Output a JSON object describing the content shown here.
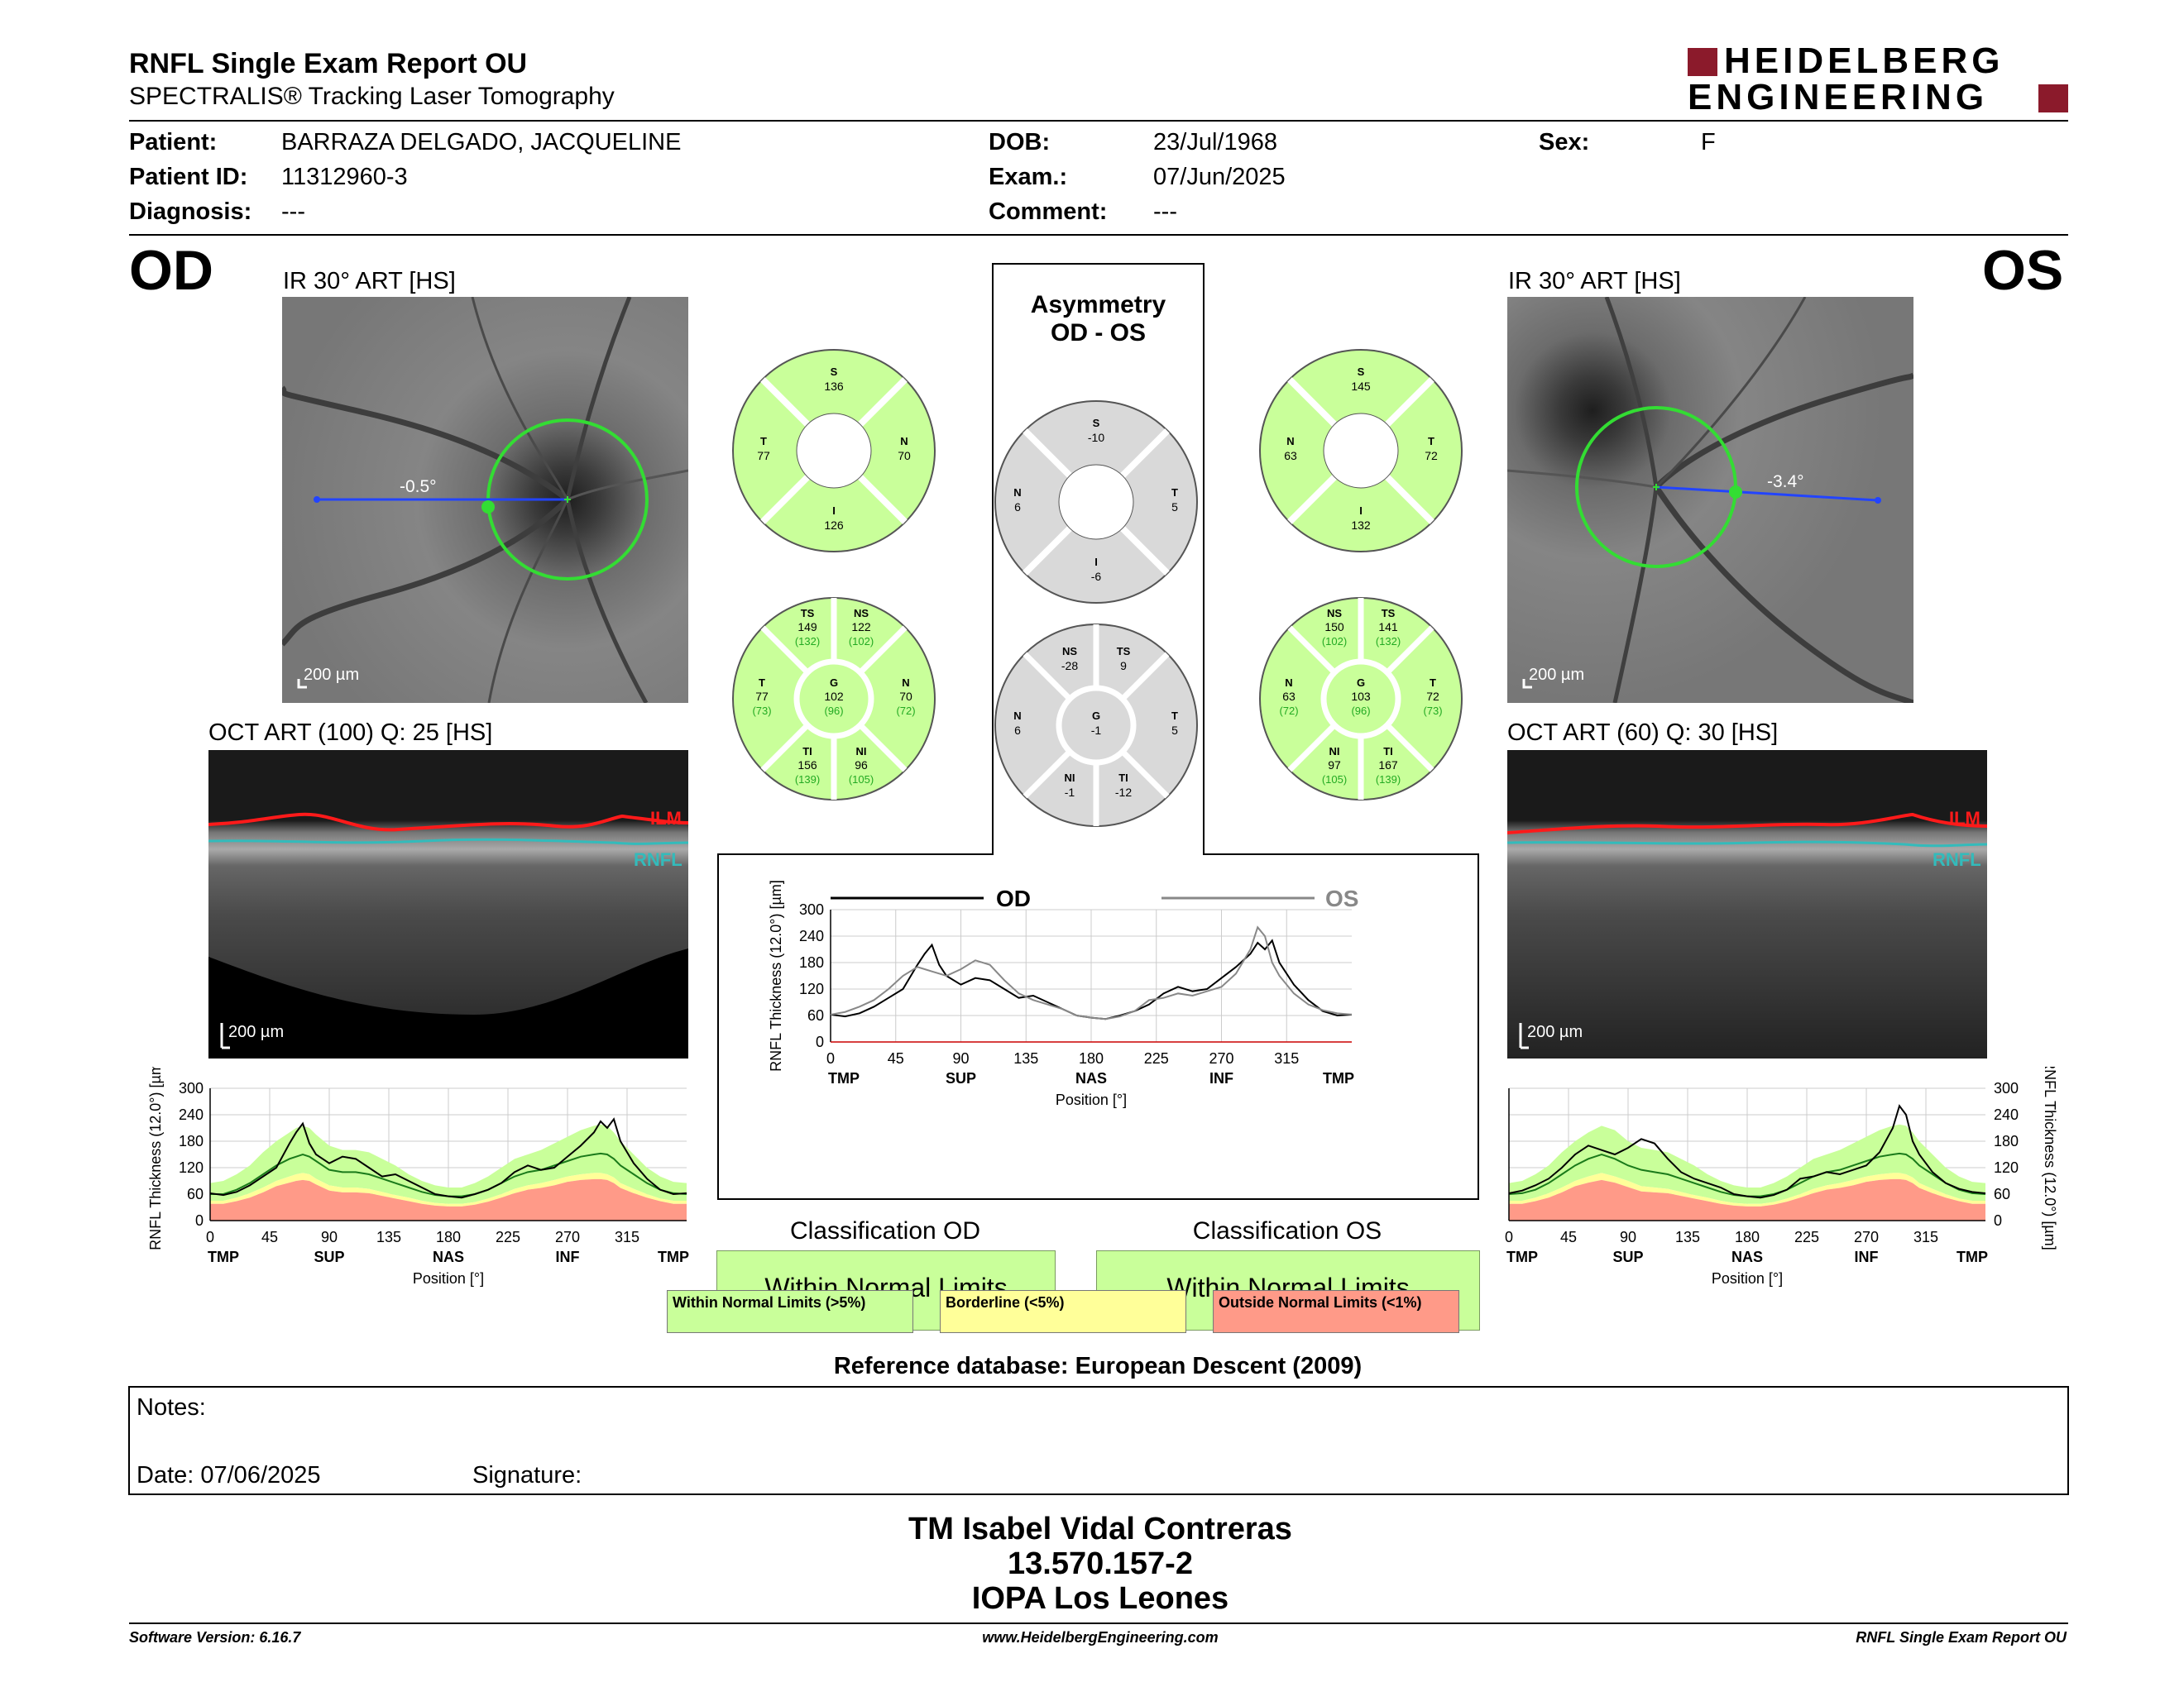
{
  "header": {
    "title": "RNFL Single Exam Report OU",
    "subtitle": "SPECTRALIS® Tracking Laser Tomography",
    "logo_line1": "HEIDELBERG",
    "logo_line2": "ENGINEERING"
  },
  "patient": {
    "patient_label": "Patient:",
    "patient_value": "BARRAZA DELGADO, JACQUELINE",
    "id_label": "Patient ID:",
    "id_value": "11312960-3",
    "diagnosis_label": "Diagnosis:",
    "diagnosis_value": "---",
    "dob_label": "DOB:",
    "dob_value": "23/Jul/1968",
    "exam_label": "Exam.:",
    "exam_value": "07/Jun/2025",
    "comment_label": "Comment:",
    "comment_value": "---",
    "sex_label": "Sex:",
    "sex_value": "F"
  },
  "od": {
    "eye": "OD",
    "ir_label": "IR 30° ART [HS]",
    "ir_angle": "-0.5°",
    "ir_scale": "200 µm",
    "oct_label": "OCT ART (100) Q: 25 [HS]",
    "oct_scale": "200 µm",
    "ilm": "ILM",
    "rnfl": "RNFL",
    "sectors6": {
      "s_lbl": "S",
      "s": "136",
      "t_lbl": "T",
      "t": "77",
      "n_lbl": "N",
      "n": "70",
      "i_lbl": "I",
      "i": "126"
    },
    "sectors": {
      "ts_lbl": "TS",
      "ts": "149",
      "ts_ref": "(132)",
      "ns_lbl": "NS",
      "ns": "122",
      "ns_ref": "(102)",
      "t_lbl": "T",
      "t": "77",
      "t_ref": "(73)",
      "g_lbl": "G",
      "g": "102",
      "g_ref": "(96)",
      "n_lbl": "N",
      "n": "70",
      "n_ref": "(72)",
      "ti_lbl": "TI",
      "ti": "156",
      "ti_ref": "(139)",
      "ni_lbl": "NI",
      "ni": "96",
      "ni_ref": "(105)"
    },
    "classification_label": "Classification OD",
    "classification_value": "Within Normal Limits"
  },
  "os": {
    "eye": "OS",
    "ir_label": "IR 30° ART [HS]",
    "ir_angle": "-3.4°",
    "ir_scale": "200 µm",
    "oct_label": "OCT ART (60) Q: 30 [HS]",
    "oct_scale": "200 µm",
    "ilm": "ILM",
    "rnfl": "RNFL",
    "sectors6": {
      "s_lbl": "S",
      "s": "145",
      "n_lbl": "N",
      "n": "63",
      "t_lbl": "T",
      "t": "72",
      "i_lbl": "I",
      "i": "132"
    },
    "sectors": {
      "ns_lbl": "NS",
      "ns": "150",
      "ns_ref": "(102)",
      "ts_lbl": "TS",
      "ts": "141",
      "ts_ref": "(132)",
      "n_lbl": "N",
      "n": "63",
      "n_ref": "(72)",
      "g_lbl": "G",
      "g": "103",
      "g_ref": "(96)",
      "t_lbl": "T",
      "t": "72",
      "t_ref": "(73)",
      "ni_lbl": "NI",
      "ni": "97",
      "ni_ref": "(105)",
      "ti_lbl": "TI",
      "ti": "167",
      "ti_ref": "(139)"
    },
    "classification_label": "Classification OS",
    "classification_value": "Within Normal Limits"
  },
  "asymmetry": {
    "title1": "Asymmetry",
    "title2": "OD - OS",
    "sectors4": {
      "s_lbl": "S",
      "s": "-10",
      "n_lbl": "N",
      "n": "6",
      "t_lbl": "T",
      "t": "5",
      "i_lbl": "I",
      "i": "-6"
    },
    "sectors": {
      "ns_lbl": "NS",
      "ns": "-28",
      "ts_lbl": "TS",
      "ts": "9",
      "n_lbl": "N",
      "n": "6",
      "g_lbl": "G",
      "g": "-1",
      "t_lbl": "T",
      "t": "5",
      "ni_lbl": "NI",
      "ni": "-1",
      "ti_lbl": "TI",
      "ti": "-12"
    }
  },
  "chart_data": [
    {
      "type": "line",
      "name": "od-profile",
      "ylabel": "RNFL Thickness (12.0°) [µm]",
      "xlabel": "Position [°]",
      "ylim": [
        0,
        300
      ],
      "yticks": [
        0,
        60,
        120,
        180,
        240,
        300
      ],
      "xticks": [
        0,
        45,
        90,
        135,
        180,
        225,
        270,
        315
      ],
      "xlim": [
        0,
        360
      ],
      "region_labels": [
        "TMP",
        "SUP",
        "NAS",
        "INF",
        "TMP"
      ],
      "region_positions": [
        10,
        90,
        180,
        270,
        350
      ],
      "x": [
        0,
        10,
        20,
        30,
        40,
        50,
        60,
        65,
        70,
        75,
        80,
        90,
        100,
        110,
        120,
        130,
        140,
        150,
        160,
        170,
        180,
        190,
        200,
        210,
        220,
        230,
        240,
        250,
        260,
        270,
        280,
        290,
        295,
        300,
        305,
        310,
        320,
        330,
        340,
        350,
        360
      ],
      "series": [
        {
          "values": [
            62,
            58,
            65,
            80,
            100,
            120,
            175,
            200,
            220,
            175,
            150,
            130,
            145,
            140,
            120,
            100,
            105,
            90,
            75,
            60,
            55,
            52,
            60,
            70,
            85,
            110,
            125,
            115,
            120,
            145,
            170,
            200,
            225,
            210,
            230,
            180,
            130,
            95,
            70,
            60,
            62
          ]
        }
      ],
      "normal_mean": [
        60,
        60,
        70,
        85,
        105,
        125,
        140,
        145,
        150,
        145,
        135,
        115,
        110,
        110,
        105,
        95,
        85,
        75,
        65,
        58,
        55,
        55,
        60,
        70,
        85,
        100,
        110,
        115,
        125,
        135,
        145,
        150,
        152,
        150,
        140,
        125,
        105,
        85,
        70,
        62,
        60
      ],
      "normal_upper": [
        85,
        90,
        105,
        125,
        155,
        180,
        200,
        210,
        215,
        210,
        195,
        170,
        160,
        160,
        155,
        140,
        125,
        105,
        90,
        80,
        75,
        75,
        85,
        100,
        120,
        140,
        150,
        160,
        175,
        190,
        205,
        215,
        218,
        215,
        200,
        180,
        150,
        120,
        100,
        88,
        85
      ],
      "borderline_lower": [
        45,
        45,
        52,
        62,
        75,
        90,
        100,
        105,
        108,
        105,
        95,
        80,
        75,
        75,
        72,
        65,
        58,
        52,
        45,
        40,
        38,
        38,
        42,
        50,
        60,
        72,
        80,
        85,
        92,
        100,
        105,
        108,
        108,
        105,
        98,
        85,
        72,
        60,
        50,
        45,
        45
      ],
      "outside_lower": [
        38,
        38,
        44,
        52,
        64,
        78,
        86,
        90,
        92,
        90,
        82,
        68,
        64,
        64,
        62,
        56,
        50,
        44,
        38,
        34,
        32,
        32,
        36,
        43,
        52,
        62,
        70,
        74,
        80,
        88,
        92,
        94,
        94,
        92,
        85,
        74,
        62,
        52,
        44,
        38,
        38
      ]
    },
    {
      "type": "line",
      "name": "os-profile",
      "ylabel": "RNFL Thickness (12.0°) [µm]",
      "xlabel": "Position [°]",
      "ylim": [
        0,
        300
      ],
      "yticks": [
        0,
        60,
        120,
        180,
        240,
        300
      ],
      "xticks": [
        0,
        45,
        90,
        135,
        180,
        225,
        270,
        315
      ],
      "xlim": [
        0,
        360
      ],
      "region_labels": [
        "TMP",
        "SUP",
        "NAS",
        "INF",
        "TMP"
      ],
      "region_positions": [
        10,
        90,
        180,
        270,
        350
      ],
      "x": [
        0,
        10,
        20,
        30,
        40,
        50,
        60,
        70,
        80,
        90,
        100,
        110,
        120,
        130,
        140,
        150,
        160,
        170,
        180,
        190,
        200,
        210,
        220,
        230,
        240,
        250,
        260,
        270,
        280,
        290,
        295,
        300,
        305,
        310,
        320,
        330,
        340,
        350,
        360
      ],
      "series": [
        {
          "values": [
            62,
            68,
            80,
            95,
            120,
            150,
            170,
            160,
            150,
            165,
            185,
            175,
            140,
            110,
            95,
            85,
            75,
            60,
            55,
            52,
            58,
            70,
            95,
            100,
            110,
            105,
            115,
            125,
            155,
            210,
            260,
            240,
            180,
            150,
            110,
            85,
            72,
            65,
            62
          ]
        }
      ],
      "normal_mean": [
        60,
        62,
        70,
        85,
        105,
        125,
        140,
        150,
        140,
        125,
        115,
        110,
        105,
        95,
        85,
        75,
        65,
        58,
        55,
        55,
        60,
        70,
        85,
        100,
        110,
        115,
        125,
        135,
        145,
        150,
        152,
        150,
        140,
        125,
        105,
        85,
        70,
        62,
        60
      ],
      "normal_upper": [
        85,
        90,
        105,
        125,
        155,
        180,
        200,
        215,
        205,
        180,
        165,
        160,
        155,
        140,
        125,
        105,
        90,
        80,
        75,
        75,
        85,
        100,
        120,
        140,
        150,
        160,
        175,
        190,
        205,
        215,
        218,
        215,
        200,
        180,
        150,
        120,
        100,
        88,
        85
      ],
      "borderline_lower": [
        45,
        45,
        52,
        62,
        75,
        90,
        100,
        108,
        100,
        90,
        78,
        75,
        72,
        65,
        58,
        52,
        45,
        40,
        38,
        38,
        42,
        50,
        60,
        72,
        80,
        85,
        92,
        100,
        105,
        108,
        108,
        105,
        98,
        85,
        72,
        60,
        50,
        45,
        45
      ],
      "outside_lower": [
        38,
        38,
        44,
        52,
        64,
        78,
        86,
        92,
        86,
        76,
        66,
        64,
        62,
        56,
        50,
        44,
        38,
        34,
        32,
        32,
        36,
        43,
        52,
        62,
        70,
        74,
        80,
        88,
        92,
        94,
        94,
        92,
        85,
        74,
        62,
        52,
        44,
        38,
        38
      ]
    },
    {
      "type": "line",
      "name": "asymmetry-profile",
      "ylabel": "RNFL Thickness (12.0°) [µm]",
      "xlabel": "Position [°]",
      "ylim": [
        0,
        300
      ],
      "yticks": [
        0,
        60,
        120,
        180,
        240,
        300
      ],
      "xticks": [
        0,
        45,
        90,
        135,
        180,
        225,
        270,
        315
      ],
      "xlim": [
        0,
        360
      ],
      "region_labels": [
        "TMP",
        "SUP",
        "NAS",
        "INF",
        "TMP"
      ],
      "region_positions": [
        10,
        90,
        180,
        270,
        350
      ],
      "legend": [
        "OD",
        "OS"
      ],
      "x": [
        0,
        10,
        20,
        30,
        40,
        50,
        60,
        65,
        70,
        75,
        80,
        90,
        100,
        110,
        120,
        130,
        140,
        150,
        160,
        170,
        180,
        190,
        200,
        210,
        220,
        230,
        240,
        250,
        260,
        270,
        280,
        290,
        295,
        300,
        305,
        310,
        320,
        330,
        340,
        350,
        360
      ],
      "series": [
        {
          "name": "OD",
          "values": [
            62,
            58,
            65,
            80,
            100,
            120,
            175,
            200,
            220,
            175,
            150,
            130,
            145,
            140,
            120,
            100,
            105,
            90,
            75,
            60,
            55,
            52,
            60,
            70,
            85,
            110,
            125,
            115,
            120,
            145,
            170,
            200,
            225,
            210,
            230,
            180,
            130,
            95,
            70,
            60,
            62
          ]
        },
        {
          "name": "OS",
          "values": [
            62,
            68,
            80,
            95,
            120,
            150,
            170,
            165,
            160,
            155,
            150,
            165,
            185,
            175,
            140,
            110,
            95,
            85,
            75,
            60,
            55,
            52,
            58,
            70,
            95,
            100,
            110,
            105,
            115,
            125,
            155,
            210,
            260,
            240,
            180,
            150,
            110,
            85,
            72,
            65,
            62
          ]
        }
      ]
    }
  ],
  "legend": {
    "wnl": "Within Normal Limits (>5%)",
    "border": "Borderline (<5%)",
    "onl": "Outside Normal Limits (<1%)"
  },
  "colors": {
    "green": "#c9ff9a",
    "yellow": "#ffff99",
    "red": "#ff9a88",
    "gray_sector": "#d9d9d9",
    "circle": "#33dd33",
    "ilm": "#ff0000",
    "rnfl": "#33bbbb"
  },
  "reference_db": "Reference database: European Descent (2009)",
  "notes": {
    "notes_label": "Notes:",
    "date_label": "Date: 07/06/2025",
    "signature_label": "Signature:"
  },
  "signature": {
    "name": "TM Isabel Vidal Contreras",
    "id": "13.570.157-2",
    "org": "IOPA Los Leones"
  },
  "footer": {
    "software": "Software Version: 6.16.7",
    "url": "www.HeidelbergEngineering.com",
    "report": "RNFL Single Exam Report OU"
  }
}
